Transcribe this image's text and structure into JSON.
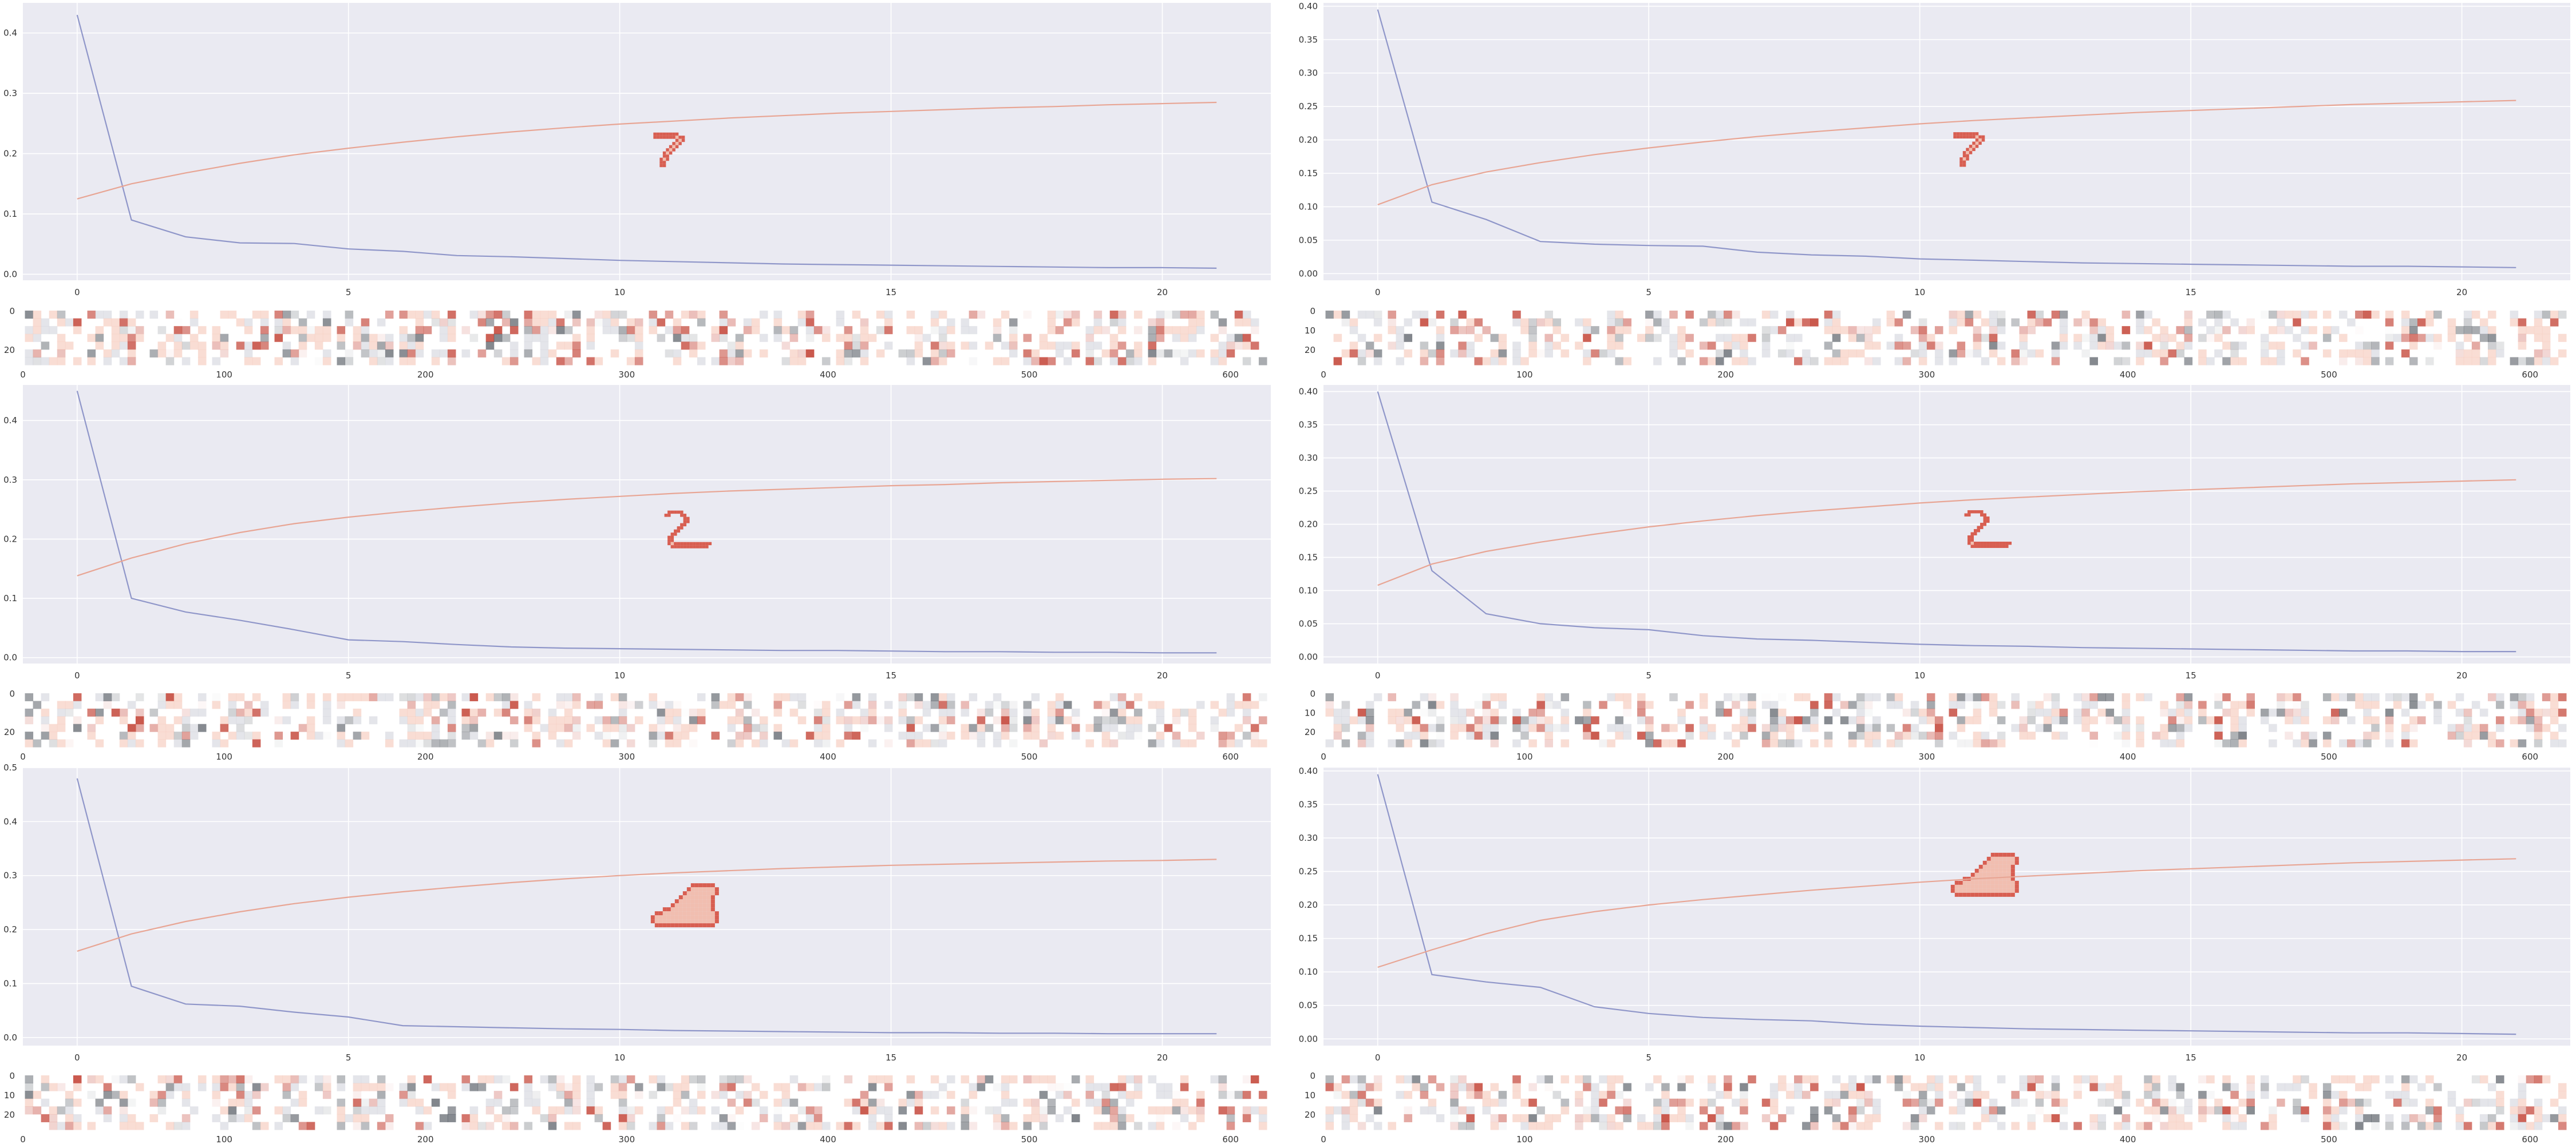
{
  "chart_data": [
    {
      "type": "line",
      "row": 0,
      "col": 0,
      "xlim": [
        -1,
        22
      ],
      "ylim": [
        -0.01,
        0.45
      ],
      "xticks": [
        0,
        5,
        10,
        15,
        20
      ],
      "yticks": [
        0.0,
        0.1,
        0.2,
        0.3,
        0.4
      ],
      "ytick_format": 1,
      "grid": true,
      "series": [
        {
          "color": "#8f96c9",
          "x": [
            0,
            1,
            2,
            3,
            4,
            5,
            6,
            7,
            8,
            9,
            10,
            11,
            12,
            13,
            14,
            15,
            16,
            17,
            18,
            19,
            20,
            21
          ],
          "values": [
            0.43,
            0.09,
            0.062,
            0.052,
            0.051,
            0.042,
            0.038,
            0.031,
            0.029,
            0.026,
            0.023,
            0.021,
            0.019,
            0.017,
            0.016,
            0.015,
            0.014,
            0.013,
            0.012,
            0.011,
            0.011,
            0.01
          ]
        },
        {
          "color": "#e8a594",
          "x": [
            0,
            1,
            2,
            3,
            4,
            5,
            6,
            7,
            8,
            9,
            10,
            11,
            12,
            13,
            14,
            15,
            16,
            17,
            18,
            19,
            20,
            21
          ],
          "values": [
            0.125,
            0.15,
            0.168,
            0.184,
            0.198,
            0.209,
            0.219,
            0.228,
            0.236,
            0.243,
            0.249,
            0.254,
            0.259,
            0.263,
            0.267,
            0.27,
            0.273,
            0.276,
            0.278,
            0.281,
            0.283,
            0.285
          ]
        }
      ],
      "inset_shape": "seven",
      "strip": {
        "xticks": [
          0,
          100,
          200,
          300,
          400,
          500,
          600
        ],
        "yticks": [
          0,
          20
        ],
        "count": 20,
        "cmap_seed": 11
      }
    },
    {
      "type": "line",
      "row": 0,
      "col": 1,
      "xlim": [
        -1,
        22
      ],
      "ylim": [
        -0.01,
        0.405
      ],
      "xticks": [
        0,
        5,
        10,
        15,
        20
      ],
      "yticks": [
        0.0,
        0.05,
        0.1,
        0.15,
        0.2,
        0.25,
        0.3,
        0.35,
        0.4
      ],
      "ytick_format": 2,
      "grid": true,
      "series": [
        {
          "color": "#8f96c9",
          "x": [
            0,
            1,
            2,
            3,
            4,
            5,
            6,
            7,
            8,
            9,
            10,
            11,
            12,
            13,
            14,
            15,
            16,
            17,
            18,
            19,
            20,
            21
          ],
          "values": [
            0.395,
            0.107,
            0.081,
            0.048,
            0.044,
            0.042,
            0.041,
            0.032,
            0.028,
            0.026,
            0.022,
            0.02,
            0.018,
            0.016,
            0.015,
            0.014,
            0.013,
            0.012,
            0.011,
            0.011,
            0.01,
            0.009
          ]
        },
        {
          "color": "#e8a594",
          "x": [
            0,
            1,
            2,
            3,
            4,
            5,
            6,
            7,
            8,
            9,
            10,
            11,
            12,
            13,
            14,
            15,
            16,
            17,
            18,
            19,
            20,
            21
          ],
          "values": [
            0.103,
            0.133,
            0.152,
            0.166,
            0.178,
            0.188,
            0.197,
            0.205,
            0.212,
            0.218,
            0.224,
            0.229,
            0.233,
            0.237,
            0.241,
            0.244,
            0.247,
            0.25,
            0.253,
            0.255,
            0.257,
            0.259
          ]
        }
      ],
      "inset_shape": "seven",
      "strip": {
        "xticks": [
          0,
          100,
          200,
          300,
          400,
          500,
          600
        ],
        "yticks": [
          0,
          10,
          20
        ],
        "count": 20,
        "cmap_seed": 23
      }
    },
    {
      "type": "line",
      "row": 1,
      "col": 0,
      "xlim": [
        -1,
        22
      ],
      "ylim": [
        -0.01,
        0.46
      ],
      "xticks": [
        0,
        5,
        10,
        15,
        20
      ],
      "yticks": [
        0.0,
        0.1,
        0.2,
        0.3,
        0.4
      ],
      "ytick_format": 1,
      "grid": true,
      "series": [
        {
          "color": "#8f96c9",
          "x": [
            0,
            1,
            2,
            3,
            4,
            5,
            6,
            7,
            8,
            9,
            10,
            11,
            12,
            13,
            14,
            15,
            16,
            17,
            18,
            19,
            20,
            21
          ],
          "values": [
            0.45,
            0.1,
            0.077,
            0.063,
            0.047,
            0.03,
            0.027,
            0.022,
            0.018,
            0.016,
            0.015,
            0.014,
            0.013,
            0.012,
            0.012,
            0.011,
            0.01,
            0.01,
            0.009,
            0.009,
            0.008,
            0.008
          ]
        },
        {
          "color": "#e8a594",
          "x": [
            0,
            1,
            2,
            3,
            4,
            5,
            6,
            7,
            8,
            9,
            10,
            11,
            12,
            13,
            14,
            15,
            16,
            17,
            18,
            19,
            20,
            21
          ],
          "values": [
            0.138,
            0.168,
            0.192,
            0.211,
            0.226,
            0.237,
            0.246,
            0.254,
            0.261,
            0.267,
            0.272,
            0.277,
            0.281,
            0.284,
            0.287,
            0.29,
            0.292,
            0.295,
            0.297,
            0.299,
            0.301,
            0.302
          ]
        }
      ],
      "inset_shape": "two",
      "strip": {
        "xticks": [
          0,
          100,
          200,
          300,
          400,
          500,
          600
        ],
        "yticks": [
          0,
          20
        ],
        "count": 20,
        "cmap_seed": 37
      }
    },
    {
      "type": "line",
      "row": 1,
      "col": 1,
      "xlim": [
        -1,
        22
      ],
      "ylim": [
        -0.01,
        0.41
      ],
      "xticks": [
        0,
        5,
        10,
        15,
        20
      ],
      "yticks": [
        0.0,
        0.05,
        0.1,
        0.15,
        0.2,
        0.25,
        0.3,
        0.35,
        0.4
      ],
      "ytick_format": 2,
      "grid": true,
      "series": [
        {
          "color": "#8f96c9",
          "x": [
            0,
            1,
            2,
            3,
            4,
            5,
            6,
            7,
            8,
            9,
            10,
            11,
            12,
            13,
            14,
            15,
            16,
            17,
            18,
            19,
            20,
            21
          ],
          "values": [
            0.4,
            0.13,
            0.065,
            0.05,
            0.044,
            0.041,
            0.032,
            0.027,
            0.025,
            0.022,
            0.019,
            0.017,
            0.016,
            0.014,
            0.013,
            0.012,
            0.011,
            0.01,
            0.009,
            0.009,
            0.008,
            0.008
          ]
        },
        {
          "color": "#e8a594",
          "x": [
            0,
            1,
            2,
            3,
            4,
            5,
            6,
            7,
            8,
            9,
            10,
            11,
            12,
            13,
            14,
            15,
            16,
            17,
            18,
            19,
            20,
            21
          ],
          "values": [
            0.108,
            0.14,
            0.159,
            0.173,
            0.185,
            0.196,
            0.205,
            0.213,
            0.22,
            0.226,
            0.232,
            0.237,
            0.241,
            0.245,
            0.249,
            0.252,
            0.255,
            0.258,
            0.261,
            0.263,
            0.265,
            0.267
          ]
        }
      ],
      "inset_shape": "two",
      "strip": {
        "xticks": [
          0,
          100,
          200,
          300,
          400,
          500,
          600
        ],
        "yticks": [
          0,
          10,
          20
        ],
        "count": 20,
        "cmap_seed": 41
      }
    },
    {
      "type": "line",
      "row": 2,
      "col": 0,
      "xlim": [
        -1,
        22
      ],
      "ylim": [
        -0.015,
        0.5
      ],
      "xticks": [
        0,
        5,
        10,
        15,
        20
      ],
      "yticks": [
        0.0,
        0.1,
        0.2,
        0.3,
        0.4,
        0.5
      ],
      "ytick_format": 1,
      "grid": true,
      "series": [
        {
          "color": "#8f96c9",
          "x": [
            0,
            1,
            2,
            3,
            4,
            5,
            6,
            7,
            8,
            9,
            10,
            11,
            12,
            13,
            14,
            15,
            16,
            17,
            18,
            19,
            20,
            21
          ],
          "values": [
            0.48,
            0.095,
            0.062,
            0.058,
            0.047,
            0.038,
            0.022,
            0.02,
            0.018,
            0.016,
            0.015,
            0.013,
            0.012,
            0.011,
            0.01,
            0.009,
            0.009,
            0.008,
            0.008,
            0.007,
            0.007,
            0.007
          ]
        },
        {
          "color": "#e8a594",
          "x": [
            0,
            1,
            2,
            3,
            4,
            5,
            6,
            7,
            8,
            9,
            10,
            11,
            12,
            13,
            14,
            15,
            16,
            17,
            18,
            19,
            20,
            21
          ],
          "values": [
            0.16,
            0.192,
            0.215,
            0.233,
            0.248,
            0.26,
            0.27,
            0.279,
            0.287,
            0.294,
            0.3,
            0.305,
            0.309,
            0.313,
            0.316,
            0.319,
            0.321,
            0.323,
            0.325,
            0.327,
            0.328,
            0.33
          ]
        }
      ],
      "inset_shape": "boot",
      "strip": {
        "xticks": [
          0,
          100,
          200,
          300,
          400,
          500,
          600
        ],
        "yticks": [
          0,
          10,
          20
        ],
        "count": 20,
        "cmap_seed": 53
      }
    },
    {
      "type": "line",
      "row": 2,
      "col": 1,
      "xlim": [
        -1,
        22
      ],
      "ylim": [
        -0.01,
        0.405
      ],
      "xticks": [
        0,
        5,
        10,
        15,
        20
      ],
      "yticks": [
        0.0,
        0.05,
        0.1,
        0.15,
        0.2,
        0.25,
        0.3,
        0.35,
        0.4
      ],
      "ytick_format": 2,
      "grid": true,
      "series": [
        {
          "color": "#8f96c9",
          "x": [
            0,
            1,
            2,
            3,
            4,
            5,
            6,
            7,
            8,
            9,
            10,
            11,
            12,
            13,
            14,
            15,
            16,
            17,
            18,
            19,
            20,
            21
          ],
          "values": [
            0.395,
            0.096,
            0.085,
            0.077,
            0.048,
            0.038,
            0.032,
            0.029,
            0.027,
            0.022,
            0.019,
            0.017,
            0.015,
            0.014,
            0.013,
            0.012,
            0.011,
            0.01,
            0.009,
            0.009,
            0.008,
            0.007
          ]
        },
        {
          "color": "#e8a594",
          "x": [
            0,
            1,
            2,
            3,
            4,
            5,
            6,
            7,
            8,
            9,
            10,
            11,
            12,
            13,
            14,
            15,
            16,
            17,
            18,
            19,
            20,
            21
          ],
          "values": [
            0.107,
            0.133,
            0.157,
            0.177,
            0.19,
            0.2,
            0.208,
            0.215,
            0.222,
            0.228,
            0.234,
            0.239,
            0.243,
            0.247,
            0.251,
            0.254,
            0.257,
            0.26,
            0.263,
            0.265,
            0.267,
            0.269
          ]
        }
      ],
      "inset_shape": "boot",
      "strip": {
        "xticks": [
          0,
          100,
          200,
          300,
          400,
          500,
          600
        ],
        "yticks": [
          0,
          10,
          20
        ],
        "count": 20,
        "cmap_seed": 67
      }
    }
  ],
  "style": {
    "axes_bg": "#eaeaf2",
    "grid_color": "#ffffff",
    "tick_text": "#333333",
    "red": "#c0392b",
    "dark": "#2f3640"
  }
}
